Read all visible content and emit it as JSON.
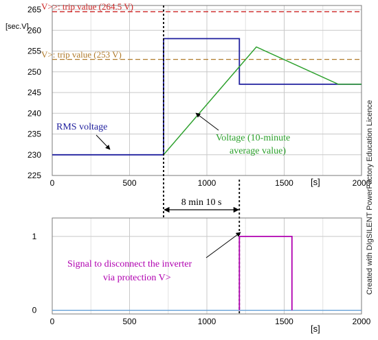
{
  "side_text": "Created with DIgSILENT PowerFactory Education Licence",
  "colors": {
    "rms": "#1f1f9e",
    "avg": "#2ca02c",
    "signal": "#b000b0",
    "trip_high": "#cc2222",
    "trip_low": "#b07a2a",
    "zero_line": "#5b9bd5",
    "grid": "#c8c8c8"
  },
  "chart_data": [
    {
      "type": "line",
      "ylabel": "[sec.V]",
      "xunit_label": "[s]",
      "xlim": [
        0,
        2000
      ],
      "ylim": [
        225,
        266
      ],
      "x_ticks": [
        0,
        500,
        1000,
        1500,
        2000
      ],
      "y_ticks": [
        225,
        230,
        235,
        240,
        245,
        250,
        255,
        260,
        265
      ],
      "grid": true,
      "series": [
        {
          "name": "RMS voltage",
          "x": [
            0,
            720,
            720,
            1210,
            1210,
            2000
          ],
          "y": [
            230,
            230,
            258,
            258,
            247,
            247
          ]
        },
        {
          "name": "Voltage (10-minute average value)",
          "x": [
            720,
            1320,
            1850,
            2000
          ],
          "y": [
            230,
            256,
            247,
            247
          ]
        }
      ],
      "thresholds": [
        {
          "label": "V>>: trip value (264.5 V)",
          "value": 264.5
        },
        {
          "label": "V>: trip value (253 V)",
          "value": 253
        }
      ],
      "annotations": {
        "rms_label": "RMS voltage",
        "avg_label_line1": "Voltage (10-minute",
        "avg_label_line2": "average value)"
      }
    },
    {
      "type": "line",
      "xunit_label": "[s]",
      "xlim": [
        0,
        2000
      ],
      "ylim": [
        -0.05,
        1.25
      ],
      "x_ticks": [
        0,
        500,
        1000,
        1500,
        2000
      ],
      "y_ticks": [
        0,
        1
      ],
      "grid": true,
      "series": [
        {
          "name": "Signal to disconnect the inverter via protection V>",
          "x": [
            0,
            1210,
            1210,
            1550,
            1550,
            2000
          ],
          "y": [
            0,
            0,
            1,
            1,
            0,
            0
          ]
        }
      ],
      "annotations": {
        "signal_label_line1": "Signal to disconnect the inverter",
        "signal_label_line2": "via protection V>"
      }
    }
  ],
  "interval": {
    "start_s": 720,
    "end_s": 1210,
    "label": "8 min 10 s"
  }
}
